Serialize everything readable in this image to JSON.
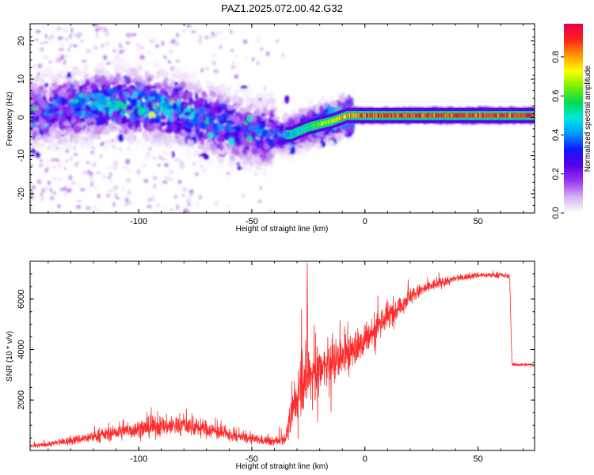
{
  "chart_data": [
    {
      "type": "heatmap",
      "title": "PAZ1.2025.072.00.42.G32",
      "xlabel": "Height of straight line (km)",
      "ylabel": "Frequency (Hz)",
      "xlim": [
        -148,
        75
      ],
      "ylim": [
        -25,
        24.5
      ],
      "xticks": [
        -100,
        -50,
        0,
        50
      ],
      "yticks": [
        -20,
        -10,
        0,
        10,
        20
      ],
      "grid": false,
      "colorbar": {
        "label": "Normalized spectral amplitude",
        "range": [
          0.0,
          0.97
        ],
        "ticks": [
          0.0,
          0.2,
          0.4,
          0.6,
          0.8
        ],
        "colormap": [
          "#ffffff",
          "#d6b4f2",
          "#9c37ee",
          "#5a00e6",
          "#1414ff",
          "#0096ff",
          "#00e6e6",
          "#00dc50",
          "#78f000",
          "#ffff00",
          "#ff9600",
          "#ff1e1e",
          "#e6004b"
        ]
      },
      "ridge": {
        "x": [
          -148,
          -130,
          -110,
          -95,
          -80,
          -65,
          -50,
          -40,
          -33,
          -25,
          -15,
          -8,
          0,
          20,
          40,
          60,
          75
        ],
        "y": [
          1.5,
          2.5,
          3.5,
          3.0,
          1.5,
          -1.5,
          -4.0,
          -4.5,
          -4.5,
          -2.5,
          -1.0,
          0.5,
          0.5,
          0.5,
          0.5,
          0.5,
          0.5
        ],
        "amplitude": [
          0.35,
          0.45,
          0.55,
          0.55,
          0.5,
          0.45,
          0.4,
          0.4,
          0.45,
          0.6,
          0.75,
          0.85,
          0.95,
          0.95,
          0.95,
          0.95,
          0.95
        ]
      }
    },
    {
      "type": "line",
      "xlabel": "Height of straight line (km)",
      "ylabel": "SNR (10 * v/v)",
      "xlim": [
        -148,
        75
      ],
      "ylim": [
        0,
        7500
      ],
      "xticks": [
        -100,
        -50,
        0,
        50
      ],
      "yticks": [
        2000,
        4000,
        6000
      ],
      "grid": false,
      "series": [
        {
          "color": "#ff2a2a",
          "x": [
            -148,
            -140,
            -130,
            -120,
            -110,
            -100,
            -90,
            -80,
            -70,
            -60,
            -50,
            -40,
            -35,
            -30,
            -28,
            -25,
            -20,
            -15,
            -10,
            -5,
            0,
            5,
            10,
            15,
            20,
            25,
            30,
            40,
            50,
            60,
            64,
            65,
            70,
            75
          ],
          "y": [
            150,
            250,
            380,
            550,
            700,
            850,
            950,
            1000,
            850,
            600,
            450,
            350,
            500,
            2200,
            2800,
            3000,
            3200,
            3400,
            3700,
            4000,
            4300,
            4900,
            5300,
            5700,
            6100,
            6350,
            6550,
            6800,
            6950,
            6950,
            6900,
            3400,
            3400,
            3400
          ],
          "noise": [
            60,
            90,
            140,
            180,
            230,
            300,
            320,
            320,
            280,
            200,
            160,
            140,
            200,
            900,
            900,
            900,
            800,
            700,
            650,
            600,
            550,
            500,
            450,
            350,
            280,
            220,
            180,
            120,
            90,
            80,
            80,
            50,
            50,
            50
          ]
        }
      ]
    }
  ]
}
